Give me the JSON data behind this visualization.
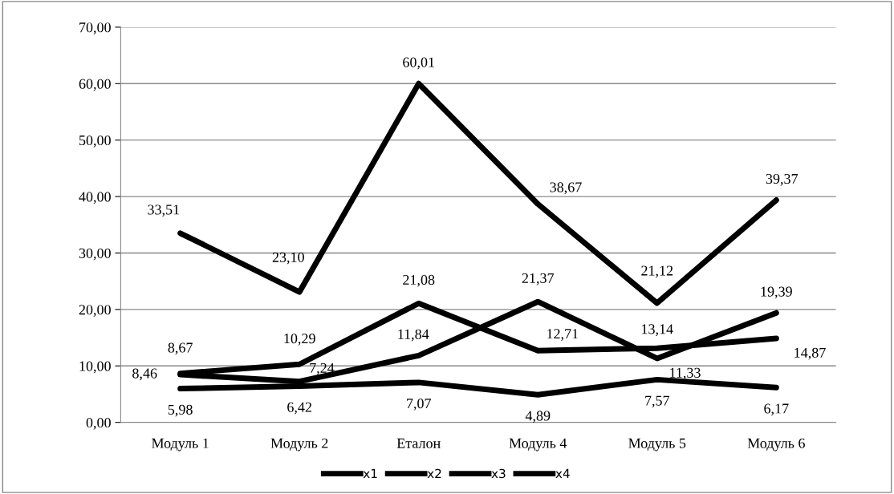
{
  "chart_data": {
    "type": "line",
    "categories": [
      "Модуль 1",
      "Модуль 2",
      "Еталон",
      "Модуль 4",
      "Модуль 5",
      "Модуль 6"
    ],
    "series": [
      {
        "name": "x1",
        "color": "#000000",
        "values": [
          33.51,
          23.1,
          60.01,
          38.67,
          21.12,
          39.37
        ],
        "value_labels": [
          "33,51",
          "23,10",
          "60,01",
          "38,67",
          "21,12",
          "39,37"
        ]
      },
      {
        "name": "x2",
        "color": "#000000",
        "values": [
          8.67,
          10.29,
          21.08,
          12.71,
          13.14,
          14.87
        ],
        "value_labels": [
          "8,67",
          "10,29",
          "21,08",
          "12,71",
          "13,14",
          "14,87"
        ]
      },
      {
        "name": "x3",
        "color": "#000000",
        "values": [
          8.46,
          7.24,
          11.84,
          21.37,
          11.33,
          19.39
        ],
        "value_labels": [
          "8,46",
          "7,24",
          "11,84",
          "21,37",
          "11,33",
          "19,39"
        ]
      },
      {
        "name": "x4",
        "color": "#000000",
        "values": [
          5.98,
          6.42,
          7.07,
          4.89,
          7.57,
          6.17
        ],
        "value_labels": [
          "5,98",
          "6,42",
          "7,07",
          "4,89",
          "7,57",
          "6,17"
        ]
      }
    ],
    "ylim": [
      0,
      70
    ],
    "yticks": [
      {
        "value": 0,
        "label": "0,00"
      },
      {
        "value": 10,
        "label": "10,00"
      },
      {
        "value": 20,
        "label": "20,00"
      },
      {
        "value": 30,
        "label": "30,00"
      },
      {
        "value": 40,
        "label": "40,00"
      },
      {
        "value": 50,
        "label": "50,00"
      },
      {
        "value": 60,
        "label": "60,00"
      },
      {
        "value": 70,
        "label": "70,00"
      }
    ],
    "grid": "y",
    "legend": "bottom",
    "line_style": "solid"
  }
}
